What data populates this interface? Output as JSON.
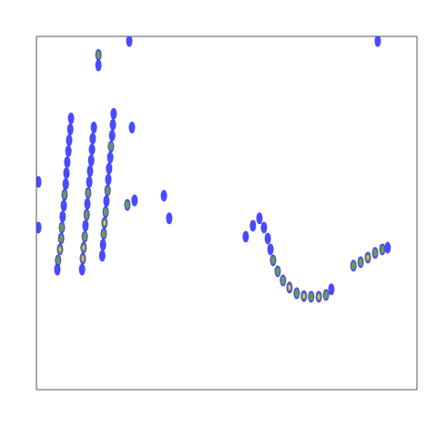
{
  "chart_data": {
    "type": "heatmap",
    "tick_labels": false,
    "grid": false,
    "xlim": [
      0,
      100
    ],
    "ylim": [
      0,
      100
    ],
    "zlim": [
      1,
      3
    ],
    "colors": [
      "#2a2aff",
      "#6aa84f",
      "#e6c87a"
    ],
    "cells": [
      [
        9.1,
        76.8,
        1
      ],
      [
        8.9,
        73.7,
        1
      ],
      [
        8.6,
        70.6,
        1
      ],
      [
        8.4,
        67.5,
        1
      ],
      [
        8.1,
        64.4,
        1
      ],
      [
        7.9,
        61.3,
        1
      ],
      [
        7.7,
        58.2,
        1
      ],
      [
        7.4,
        55.2,
        2
      ],
      [
        7.2,
        52.1,
        1
      ],
      [
        6.9,
        49.0,
        1
      ],
      [
        6.7,
        45.9,
        2
      ],
      [
        6.5,
        42.8,
        2
      ],
      [
        6.2,
        39.7,
        3
      ],
      [
        5.7,
        36.6,
        2
      ],
      [
        5.5,
        34.0,
        1
      ],
      [
        15.1,
        74.2,
        1
      ],
      [
        14.8,
        71.1,
        1
      ],
      [
        14.6,
        68.0,
        1
      ],
      [
        14.4,
        64.9,
        1
      ],
      [
        14.1,
        61.9,
        1
      ],
      [
        13.9,
        58.8,
        1
      ],
      [
        13.6,
        55.7,
        2
      ],
      [
        13.4,
        52.6,
        1
      ],
      [
        13.2,
        49.5,
        2
      ],
      [
        12.9,
        46.4,
        1
      ],
      [
        12.7,
        43.3,
        2
      ],
      [
        12.4,
        40.2,
        3
      ],
      [
        12.2,
        37.1,
        3
      ],
      [
        12.0,
        34.0,
        1
      ],
      [
        20.3,
        78.1,
        1
      ],
      [
        20.1,
        75.0,
        1
      ],
      [
        19.9,
        71.9,
        1
      ],
      [
        19.6,
        68.8,
        2
      ],
      [
        19.4,
        65.7,
        1
      ],
      [
        19.1,
        62.6,
        1
      ],
      [
        18.9,
        59.5,
        1
      ],
      [
        18.7,
        56.4,
        2
      ],
      [
        18.4,
        53.4,
        1
      ],
      [
        18.2,
        50.3,
        2
      ],
      [
        17.9,
        47.2,
        3
      ],
      [
        17.7,
        44.1,
        2
      ],
      [
        17.5,
        41.0,
        1
      ],
      [
        17.3,
        37.9,
        1
      ],
      [
        23.9,
        52.3,
        2
      ],
      [
        16.3,
        94.8,
        2
      ],
      [
        16.3,
        91.8,
        1
      ],
      [
        0.5,
        58.8,
        1
      ],
      [
        0.5,
        45.9,
        1
      ],
      [
        25.1,
        74.2,
        1
      ],
      [
        25.8,
        53.6,
        1
      ],
      [
        33.5,
        54.9,
        1
      ],
      [
        34.9,
        48.5,
        1
      ],
      [
        24.4,
        98.7,
        1
      ],
      [
        89.7,
        98.7,
        1
      ],
      [
        55.0,
        43.3,
        1
      ],
      [
        56.9,
        46.4,
        1
      ],
      [
        58.6,
        48.5,
        1
      ],
      [
        59.8,
        45.9,
        1
      ],
      [
        60.8,
        42.8,
        1
      ],
      [
        61.5,
        39.7,
        1
      ],
      [
        62.2,
        36.6,
        2
      ],
      [
        63.4,
        33.5,
        2
      ],
      [
        64.8,
        30.9,
        2
      ],
      [
        66.5,
        28.9,
        3
      ],
      [
        68.4,
        27.3,
        2
      ],
      [
        70.3,
        26.5,
        3
      ],
      [
        72.2,
        26.3,
        2
      ],
      [
        74.2,
        26.3,
        3
      ],
      [
        76.1,
        26.8,
        2
      ],
      [
        77.5,
        28.4,
        1
      ],
      [
        83.3,
        35.1,
        2
      ],
      [
        85.2,
        36.1,
        2
      ],
      [
        87.1,
        37.4,
        3
      ],
      [
        89.0,
        38.7,
        2
      ],
      [
        90.9,
        39.7,
        2
      ],
      [
        92.3,
        40.2,
        1
      ]
    ]
  }
}
